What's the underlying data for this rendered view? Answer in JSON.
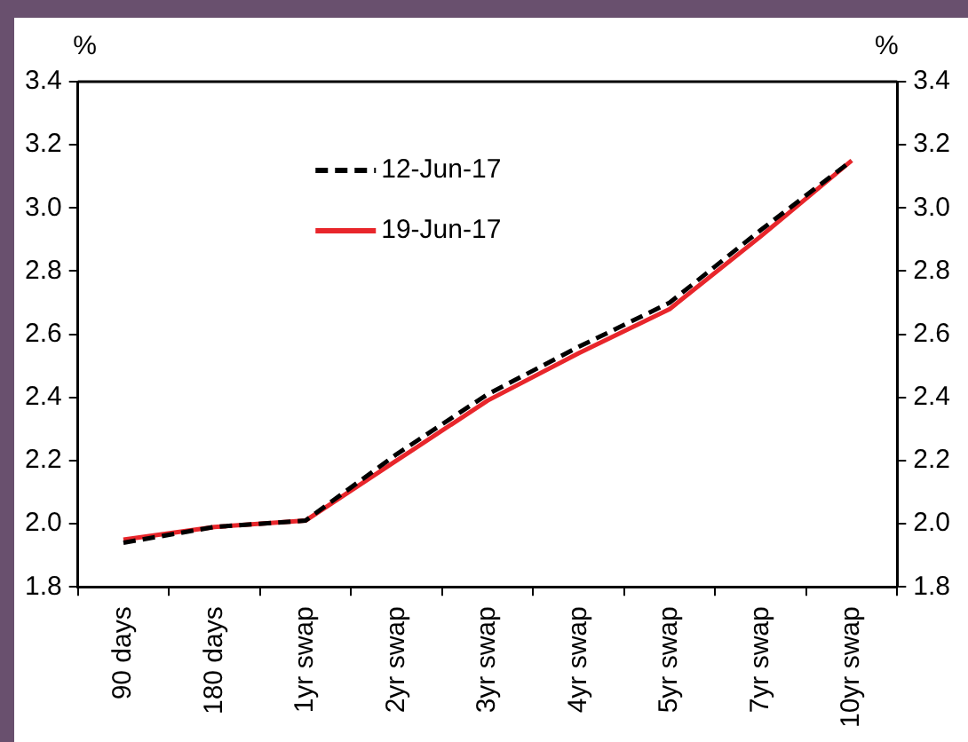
{
  "chart_data": {
    "type": "line",
    "ylabel": "%",
    "y2label": "%",
    "categories": [
      "90 days",
      "180 days",
      "1yr swap",
      "2yr swap",
      "3yr swap",
      "4yr swap",
      "5yr swap",
      "7yr swap",
      "10yr swap"
    ],
    "series": [
      {
        "name": "12-Jun-17",
        "color": "#000000",
        "line_style": "dashed",
        "values": [
          1.94,
          1.99,
          2.01,
          2.22,
          2.41,
          2.56,
          2.7,
          2.93,
          3.15
        ]
      },
      {
        "name": "19-Jun-17",
        "color": "#e8262b",
        "line_style": "solid",
        "values": [
          1.95,
          1.99,
          2.01,
          2.2,
          2.39,
          2.54,
          2.68,
          2.91,
          3.15
        ]
      }
    ],
    "ylim": [
      1.8,
      3.4
    ],
    "yticks": [
      1.8,
      {
        "value": 2,
        "label": "2.0"
      },
      2.2,
      2.4,
      2.6,
      2.8,
      {
        "value": 3,
        "label": "3.0"
      },
      3.2,
      3.4
    ],
    "y2lim": [
      1.8,
      3.4
    ],
    "y2ticks": [
      1.8,
      {
        "value": 2,
        "label": "2.0"
      },
      2.2,
      2.4,
      2.6,
      2.8,
      {
        "value": 3,
        "label": "3.0"
      },
      3.2,
      3.4
    ],
    "legend": "top left",
    "marker": "none",
    "grid": false
  }
}
